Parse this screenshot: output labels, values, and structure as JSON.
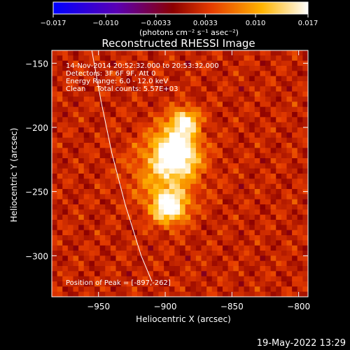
{
  "chart_data": {
    "type": "heatmap",
    "title": "Reconstructed RHESSI Image",
    "xlabel": "Heliocentric X (arcsec)",
    "ylabel": "Heliocentric Y (arcsec)",
    "xlim": [
      -985,
      -793
    ],
    "ylim": [
      -332,
      -140
    ],
    "x_ticks": [
      -950,
      -900,
      -850,
      -800
    ],
    "x_tick_labels": [
      "−950",
      "−900",
      "−850",
      "−800"
    ],
    "y_ticks": [
      -150,
      -200,
      -250,
      -300
    ],
    "y_tick_labels": [
      "−150",
      "−200",
      "−250",
      "−300"
    ],
    "colorbar": {
      "range": [
        -0.017,
        0.017
      ],
      "ticks": [
        -0.017,
        -0.01,
        -0.0033,
        0.0033,
        0.01,
        0.017
      ],
      "tick_labels": [
        "−0.017",
        "−0.010",
        "−0.0033",
        "0.0033",
        "0.010",
        "0.017"
      ],
      "unit_label": "(photons cm⁻² s⁻¹ asec⁻²)",
      "colormap": [
        "#0000ff",
        "#5a00b4",
        "#8c0000",
        "#e63c00",
        "#ffb400",
        "#ffffff"
      ]
    },
    "annotations": [
      "14-Nov-2014 20:52:32.000 to 20:53:32.000",
      "Detectors: 3F 6F 9F, Att 0",
      "Energy Range: 6.0 - 12.0 keV",
      "Clean     Total counts: 5.57E+03"
    ],
    "peak_label": "Position of Peak = [-897,-262]",
    "peak_position": [
      -897,
      -262
    ],
    "sources": [
      {
        "x": -897,
        "y": -262,
        "amp": 1.0,
        "sigma": 9
      },
      {
        "x": -891,
        "y": -222,
        "amp": 0.85,
        "sigma": 10
      },
      {
        "x": -885,
        "y": -195,
        "amp": 0.8,
        "sigma": 7
      },
      {
        "x": -900,
        "y": -235,
        "amp": 0.5,
        "sigma": 18
      },
      {
        "x": -893,
        "y": -210,
        "amp": 0.45,
        "sigma": 12
      }
    ],
    "limb_curve": [
      [
        -955,
        -140
      ],
      [
        -948,
        -180
      ],
      [
        -940,
        -220
      ],
      [
        -930,
        -260
      ],
      [
        -918,
        -300
      ],
      [
        -910,
        -320
      ]
    ]
  },
  "footer": {
    "timestamp": "19-May-2022 13:29"
  }
}
